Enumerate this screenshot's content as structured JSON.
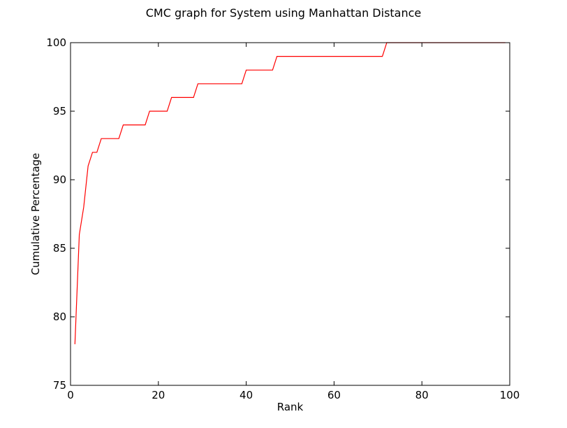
{
  "chart_data": {
    "type": "line",
    "title": "CMC graph for System using Manhattan Distance",
    "xlabel": "Rank",
    "ylabel": "Cumulative Percentage",
    "xlim": [
      0,
      100
    ],
    "ylim": [
      75,
      100
    ],
    "xticks": [
      0,
      20,
      40,
      60,
      80,
      100
    ],
    "yticks": [
      75,
      80,
      85,
      90,
      95,
      100
    ],
    "grid": false,
    "legend": "none",
    "series": [
      {
        "color": "#ff0000",
        "x": [
          1,
          2,
          3,
          4,
          5,
          6,
          7,
          8,
          9,
          10,
          11,
          12,
          13,
          14,
          15,
          16,
          17,
          18,
          19,
          20,
          21,
          22,
          23,
          24,
          25,
          26,
          27,
          28,
          29,
          30,
          31,
          32,
          33,
          34,
          35,
          36,
          37,
          38,
          39,
          40,
          41,
          42,
          43,
          44,
          45,
          46,
          47,
          48,
          49,
          50,
          51,
          52,
          53,
          54,
          55,
          56,
          57,
          58,
          59,
          60,
          61,
          62,
          63,
          64,
          65,
          66,
          67,
          68,
          69,
          70,
          71,
          72,
          73,
          74,
          75,
          76,
          77,
          78,
          79,
          80,
          81,
          82,
          83,
          84,
          85,
          86,
          87,
          88,
          89,
          90,
          91,
          92,
          93,
          94,
          95,
          96,
          97,
          98,
          99
        ],
        "y": [
          78,
          86,
          88,
          91,
          92,
          92,
          93,
          93,
          93,
          93,
          93,
          94,
          94,
          94,
          94,
          94,
          94,
          95,
          95,
          95,
          95,
          95,
          96,
          96,
          96,
          96,
          96,
          96,
          97,
          97,
          97,
          97,
          97,
          97,
          97,
          97,
          97,
          97,
          97,
          98,
          98,
          98,
          98,
          98,
          98,
          98,
          99,
          99,
          99,
          99,
          99,
          99,
          99,
          99,
          99,
          99,
          99,
          99,
          99,
          99,
          99,
          99,
          99,
          99,
          99,
          99,
          99,
          99,
          99,
          99,
          99,
          100,
          100,
          100,
          100,
          100,
          100,
          100,
          100,
          100,
          100,
          100,
          100,
          100,
          100,
          100,
          100,
          100,
          100,
          100,
          100,
          100,
          100,
          100,
          100,
          100,
          100,
          100,
          100
        ]
      }
    ]
  }
}
